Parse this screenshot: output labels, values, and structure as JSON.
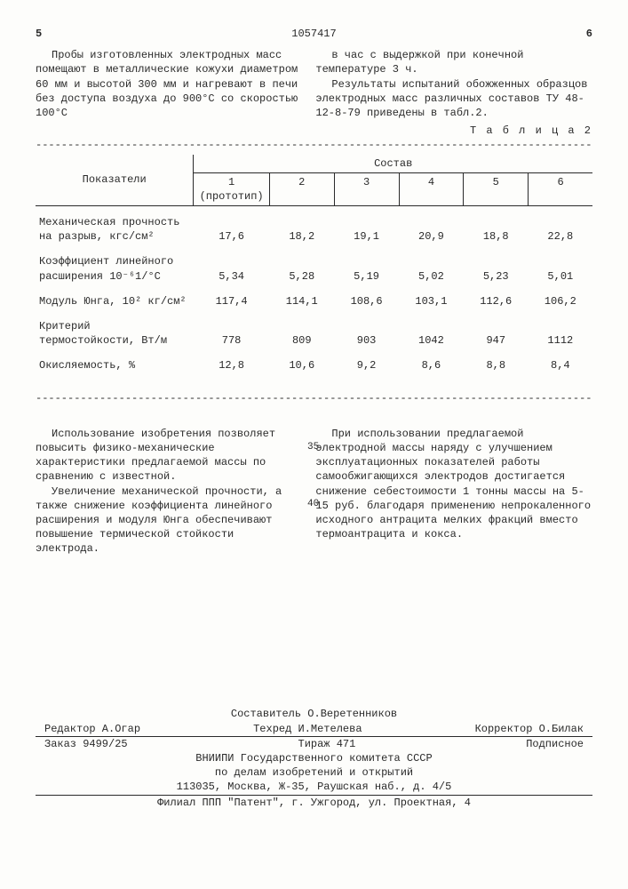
{
  "page_left": "5",
  "doc_number": "1057417",
  "page_right": "6",
  "intro_left": "Пробы изготовленных электродных масс помещают в металлические кожухи диаметром 60 мм и высотой 300 мм и нагревают в печи без доступа воздуха до 900°С со скоростью 100°С",
  "intro_right_1": "в час с выдержкой при конечной температуре 3 ч.",
  "intro_right_2": "Результаты испытаний обожженных образцов электродных масс различных составов ТУ 48-12-8-79 приведены в табл.2.",
  "table_caption": "Т а б л и ц а  2",
  "table": {
    "col_label": "Показатели",
    "group_label": "Состав",
    "cols": [
      "1 (прототип)",
      "2",
      "3",
      "4",
      "5",
      "6"
    ],
    "rows": [
      {
        "label": "Механическая прочность на разрыв, кгс/см²",
        "vals": [
          "17,6",
          "18,2",
          "19,1",
          "20,9",
          "18,8",
          "22,8"
        ]
      },
      {
        "label": "Коэффициент линейного расширения 10⁻⁶1/°С",
        "vals": [
          "5,34",
          "5,28",
          "5,19",
          "5,02",
          "5,23",
          "5,01"
        ]
      },
      {
        "label": "Модуль Юнга, 10² кг/см²",
        "vals": [
          "117,4",
          "114,1",
          "108,6",
          "103,1",
          "112,6",
          "106,2"
        ]
      },
      {
        "label": "Критерий термостойкости, Вт/м",
        "vals": [
          "778",
          "809",
          "903",
          "1042",
          "947",
          "1112"
        ]
      },
      {
        "label": "Окисляемость, %",
        "vals": [
          "12,8",
          "10,6",
          "9,2",
          "8,6",
          "8,8",
          "8,4"
        ]
      }
    ]
  },
  "body_left_1": "Использование изобретения позволяет повысить физико-механические характеристики предлагаемой массы по сравнению с известной.",
  "body_left_2": "Увеличение механической прочности, а также снижение коэффициента линейного расширения и модуля Юнга обеспечивают повышение термической стойкости электрода.",
  "body_right": "При использовании предлагаемой электродной массы наряду с улучшением эксплуатационных показателей работы самообжигающихся электродов достигается снижение себестоимости 1 тонны массы на 5-15 руб. благодаря применению непрокаленного исходного антрацита мелких фракций вместо термоантрацита и кокса.",
  "line_35": "35",
  "line_40": "40",
  "footer": {
    "composer": "Составитель О.Веретенников",
    "editor": "Редактор А.Огар",
    "techred": "Техред И.Метелева",
    "corrector": "Корректор О.Билак",
    "order": "Заказ 9499/25",
    "tirazh": "Тираж 471",
    "podpis": "Подписное",
    "org1": "ВНИИПИ Государственного комитета СССР",
    "org2": "по делам изобретений и открытий",
    "addr1": "113035, Москва, Ж-35, Раушская наб., д. 4/5",
    "addr2": "Филиал ППП \"Патент\", г. Ужгород, ул. Проектная, 4"
  }
}
